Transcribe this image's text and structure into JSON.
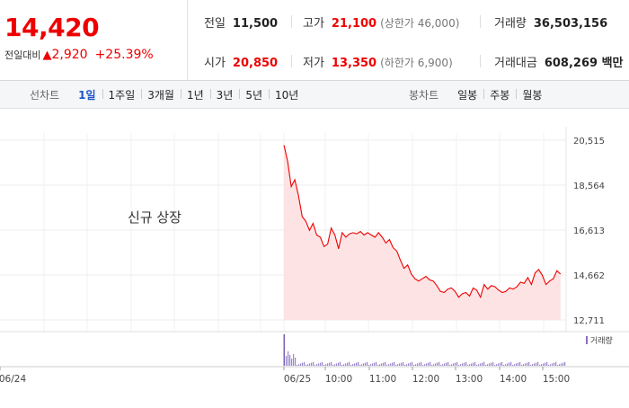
{
  "price": "14,420",
  "change": {
    "label": "전일대비",
    "arrow": "▲",
    "amount": "2,920",
    "percent": "+25.39%"
  },
  "stats": {
    "prev_close": {
      "label": "전일",
      "value": "11,500"
    },
    "high": {
      "label": "고가",
      "value": "21,100",
      "note": "(상한가 46,000)"
    },
    "volume": {
      "label": "거래량",
      "value": "36,503,156"
    },
    "open": {
      "label": "시가",
      "value": "20,850"
    },
    "low": {
      "label": "저가",
      "value": "13,350",
      "note": "(하한가 6,900)"
    },
    "trade_amount": {
      "label": "거래대금",
      "value": "608,269 백만"
    }
  },
  "line_tabs": {
    "label": "선차트",
    "items": [
      "1일",
      "1주일",
      "3개월",
      "1년",
      "3년",
      "5년",
      "10년"
    ],
    "active": "1일"
  },
  "candle_tabs": {
    "label": "봉차트",
    "items": [
      "일봉",
      "주봉",
      "월봉"
    ]
  },
  "chart_data": {
    "type": "area",
    "annotation": "신규 상장",
    "y_ticks": [
      "20,515",
      "18,564",
      "16,613",
      "14,662",
      "12,711"
    ],
    "ylim": [
      12711,
      20515
    ],
    "x_ticks": [
      "06/24",
      "06/25",
      "10:00",
      "11:00",
      "12:00",
      "13:00",
      "14:00",
      "15:00"
    ],
    "volume_legend": "거래량",
    "series": [
      {
        "x": [
          "09:00",
          "09:05",
          "09:10",
          "09:15",
          "09:20",
          "09:25",
          "09:30",
          "09:35",
          "09:40",
          "09:45",
          "09:50",
          "09:55",
          "10:00",
          "10:05",
          "10:10",
          "10:15",
          "10:20",
          "10:25",
          "10:30",
          "10:35",
          "10:40",
          "10:45",
          "10:50",
          "10:55",
          "11:00",
          "11:05",
          "11:10",
          "11:15",
          "11:20",
          "11:25",
          "11:30",
          "11:35",
          "11:40",
          "11:45",
          "11:50",
          "11:55",
          "12:00",
          "12:05",
          "12:10",
          "12:15",
          "12:20",
          "12:25",
          "12:30",
          "12:35",
          "12:40",
          "12:45",
          "12:50",
          "12:55",
          "13:00",
          "13:05",
          "13:10",
          "13:15",
          "13:20",
          "13:25",
          "13:30",
          "13:35",
          "13:40",
          "13:45",
          "13:50",
          "13:55",
          "14:00",
          "14:05",
          "14:10",
          "14:15",
          "14:20",
          "14:25",
          "14:30",
          "14:35",
          "14:40",
          "14:45",
          "14:50",
          "14:55",
          "15:00",
          "15:05",
          "15:10",
          "15:15",
          "15:20"
        ],
        "values": [
          20300,
          19600,
          18500,
          18800,
          18100,
          17200,
          17000,
          16600,
          16900,
          16400,
          16300,
          15900,
          16000,
          16700,
          16400,
          15800,
          16500,
          16300,
          16450,
          16500,
          16450,
          16550,
          16400,
          16500,
          16400,
          16300,
          16500,
          16300,
          16050,
          16200,
          15850,
          15700,
          15300,
          14950,
          15100,
          14700,
          14500,
          14400,
          14500,
          14600,
          14450,
          14400,
          14200,
          13950,
          13900,
          14050,
          14100,
          13950,
          13700,
          13850,
          13900,
          13750,
          14100,
          14000,
          13700,
          14250,
          14050,
          14200,
          14150,
          14000,
          13900,
          13950,
          14100,
          14050,
          14150,
          14350,
          14300,
          14550,
          14250,
          14750,
          14900,
          14650,
          14250,
          14400,
          14500,
          14850,
          14700
        ]
      }
    ]
  }
}
